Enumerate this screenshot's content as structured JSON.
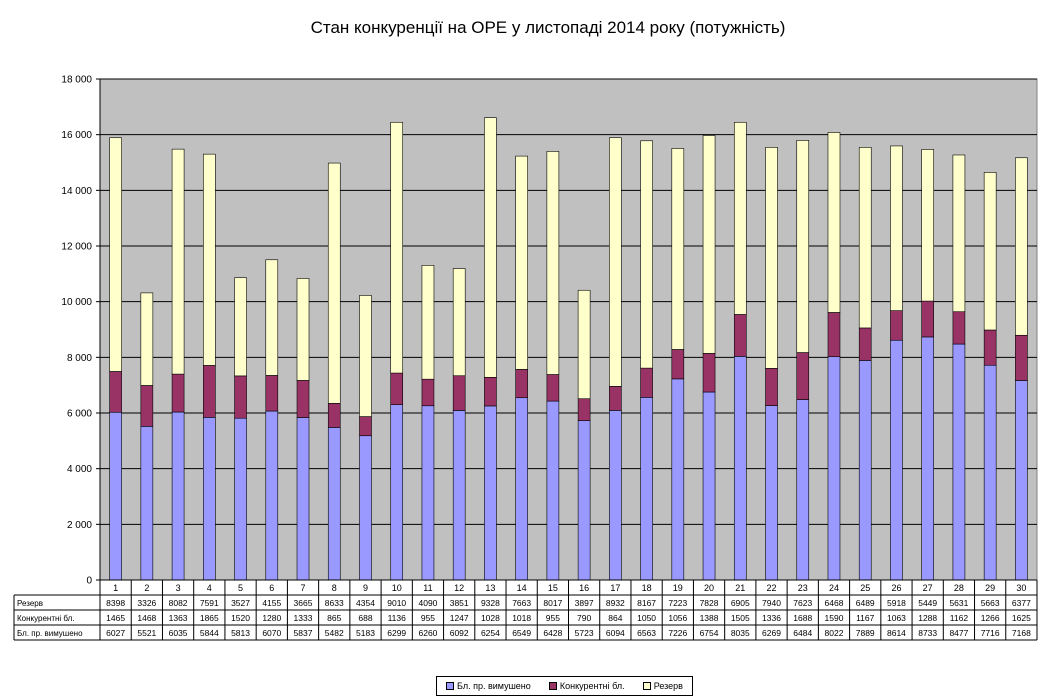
{
  "chart_data": {
    "type": "bar",
    "stacked": true,
    "title": "Стан конкуренції на ОРЕ  у листопаді 2014 року (потужність)",
    "categories": [
      "1",
      "2",
      "3",
      "4",
      "5",
      "6",
      "7",
      "8",
      "9",
      "10",
      "11",
      "12",
      "13",
      "14",
      "15",
      "16",
      "17",
      "18",
      "19",
      "20",
      "21",
      "22",
      "23",
      "24",
      "25",
      "26",
      "27",
      "28",
      "29",
      "30"
    ],
    "ylim": [
      0,
      18000
    ],
    "yticks": [
      "0",
      "2 000",
      "4 000",
      "6 000",
      "8 000",
      "10 000",
      "12 000",
      "14 000",
      "16 000",
      "18 000"
    ],
    "grid": true,
    "legend_position": "bottom",
    "series": [
      {
        "name": "Бл. пр. вимушено",
        "color": "#9999ff",
        "values": [
          6027,
          5521,
          6035,
          5844,
          5813,
          6070,
          5837,
          5482,
          5183,
          6299,
          6260,
          6092,
          6254,
          6549,
          6428,
          5723,
          6094,
          6563,
          7226,
          6754,
          8035,
          6269,
          6484,
          8022,
          7889,
          8614,
          8733,
          8477,
          7716,
          7168
        ]
      },
      {
        "name": "Конкурентні бл.",
        "color": "#993366",
        "values": [
          1465,
          1468,
          1363,
          1865,
          1520,
          1280,
          1333,
          865,
          688,
          1136,
          955,
          1247,
          1028,
          1018,
          955,
          790,
          864,
          1050,
          1056,
          1388,
          1505,
          1336,
          1688,
          1590,
          1167,
          1063,
          1288,
          1162,
          1266,
          1625
        ]
      },
      {
        "name": "Резерв",
        "color": "#ffffcc",
        "values": [
          8398,
          3326,
          8082,
          7591,
          3527,
          4155,
          3665,
          8633,
          4354,
          9010,
          4090,
          3851,
          9328,
          7663,
          8017,
          3897,
          8932,
          8167,
          7223,
          7828,
          6905,
          7940,
          7623,
          6468,
          6489,
          5918,
          5449,
          5631,
          5663,
          6377
        ]
      }
    ],
    "table_rows": [
      "Резерв",
      "Конкурентні бл.",
      "Бл. пр. вимушено"
    ],
    "plot_background": "#c0c0c0"
  }
}
